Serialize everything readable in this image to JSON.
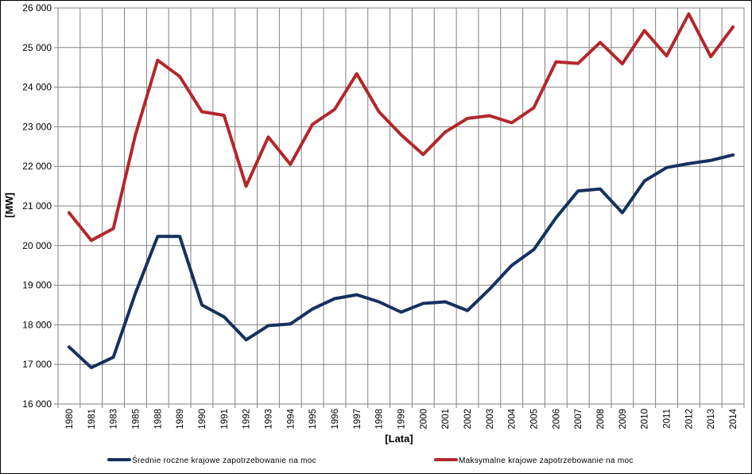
{
  "chart_data": {
    "type": "line",
    "categories": [
      "1980",
      "1981",
      "1983",
      "1985",
      "1988",
      "1989",
      "1990",
      "1991",
      "1992",
      "1993",
      "1994",
      "1995",
      "1996",
      "1997",
      "1998",
      "1999",
      "2000",
      "2001",
      "2002",
      "2003",
      "2004",
      "2005",
      "2006",
      "2007",
      "2008",
      "2009",
      "2010",
      "2011",
      "2012",
      "2013",
      "2014"
    ],
    "ylim": [
      16000,
      26000
    ],
    "yticks": [
      {
        "value": 16000,
        "label": "16 000"
      },
      {
        "value": 17000,
        "label": "17 000"
      },
      {
        "value": 18000,
        "label": "18 000"
      },
      {
        "value": 19000,
        "label": "19 000"
      },
      {
        "value": 20000,
        "label": "20 000"
      },
      {
        "value": 21000,
        "label": "21 000"
      },
      {
        "value": 22000,
        "label": "22 000"
      },
      {
        "value": 23000,
        "label": "23 000"
      },
      {
        "value": 24000,
        "label": "24 000"
      },
      {
        "value": 25000,
        "label": "25 000"
      },
      {
        "value": 26000,
        "label": "26 000"
      }
    ],
    "xlabel": "[Lata]",
    "ylabel": "[MW]",
    "grid": true,
    "legend_position": "bottom",
    "series": [
      {
        "name": "Średnie roczne krajowe zapotrzebowanie na moc",
        "color": "#16305e",
        "values": [
          17440,
          16920,
          17180,
          18800,
          20230,
          20230,
          18500,
          18200,
          17620,
          17980,
          18020,
          18400,
          18660,
          18760,
          18580,
          18320,
          18540,
          18580,
          18360,
          18900,
          19500,
          19900,
          20700,
          21380,
          21430,
          20830,
          21630,
          21970,
          22070,
          22150,
          22290
        ]
      },
      {
        "name": "Maksymalne krajowe zapotrzebowanie na moc",
        "color": "#b3272a",
        "values": [
          20830,
          20130,
          20430,
          22800,
          24680,
          24270,
          23380,
          23290,
          21500,
          22740,
          22050,
          23060,
          23440,
          24340,
          23380,
          22800,
          22300,
          22870,
          23210,
          23280,
          23100,
          23480,
          24640,
          24600,
          25130,
          24590,
          25430,
          24790,
          25850,
          24770,
          25520
        ]
      }
    ]
  }
}
